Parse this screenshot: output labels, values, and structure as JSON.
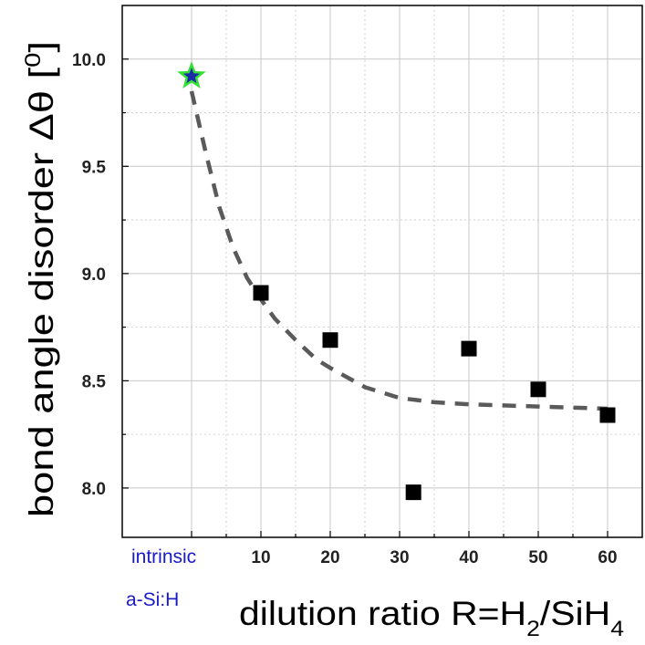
{
  "chart_data": {
    "type": "scatter",
    "xlabel": {
      "main": "dilution ratio R=H",
      "sub1": "2",
      "mid": "/SiH",
      "sub2": "4"
    },
    "ylabel": {
      "main": "bond angle disorder Δθ [",
      "sup": "0",
      "end": "]"
    },
    "xlim": [
      -10,
      65
    ],
    "ylim": [
      7.77,
      10.25
    ],
    "x_ticks": [
      10,
      20,
      30,
      40,
      50,
      60
    ],
    "y_ticks": [
      8.0,
      8.5,
      9.0,
      9.5,
      10.0
    ],
    "y_tick_labels": [
      "8.0",
      "8.5",
      "9.0",
      "9.5",
      "10.0"
    ],
    "grid": true,
    "reference_label": [
      "intrinsic",
      "a-Si:H"
    ],
    "reference_point": {
      "x": 0,
      "y": 9.92,
      "marker": "star"
    },
    "series": [
      {
        "marker": "square",
        "x": [
          10,
          20,
          32,
          40,
          50,
          60
        ],
        "y": [
          8.91,
          8.69,
          7.98,
          8.65,
          8.46,
          8.34
        ]
      }
    ],
    "fit_curve": {
      "style": "dashed",
      "x": [
        0,
        2,
        4,
        6,
        8,
        10,
        12,
        15,
        18,
        20,
        25,
        30,
        35,
        40,
        45,
        50,
        55,
        60
      ],
      "y": [
        9.85,
        9.57,
        9.31,
        9.12,
        8.98,
        8.88,
        8.79,
        8.69,
        8.6,
        8.56,
        8.47,
        8.42,
        8.4,
        8.39,
        8.385,
        8.38,
        8.375,
        8.37
      ]
    },
    "colors": {
      "marker": "#000000",
      "star_fill": "#1a2aa8",
      "star_outline": "#35e035",
      "fit_line": "#5a5a5a",
      "reference_label": "#1a1ac8",
      "grid": "#c8c8c8"
    }
  }
}
